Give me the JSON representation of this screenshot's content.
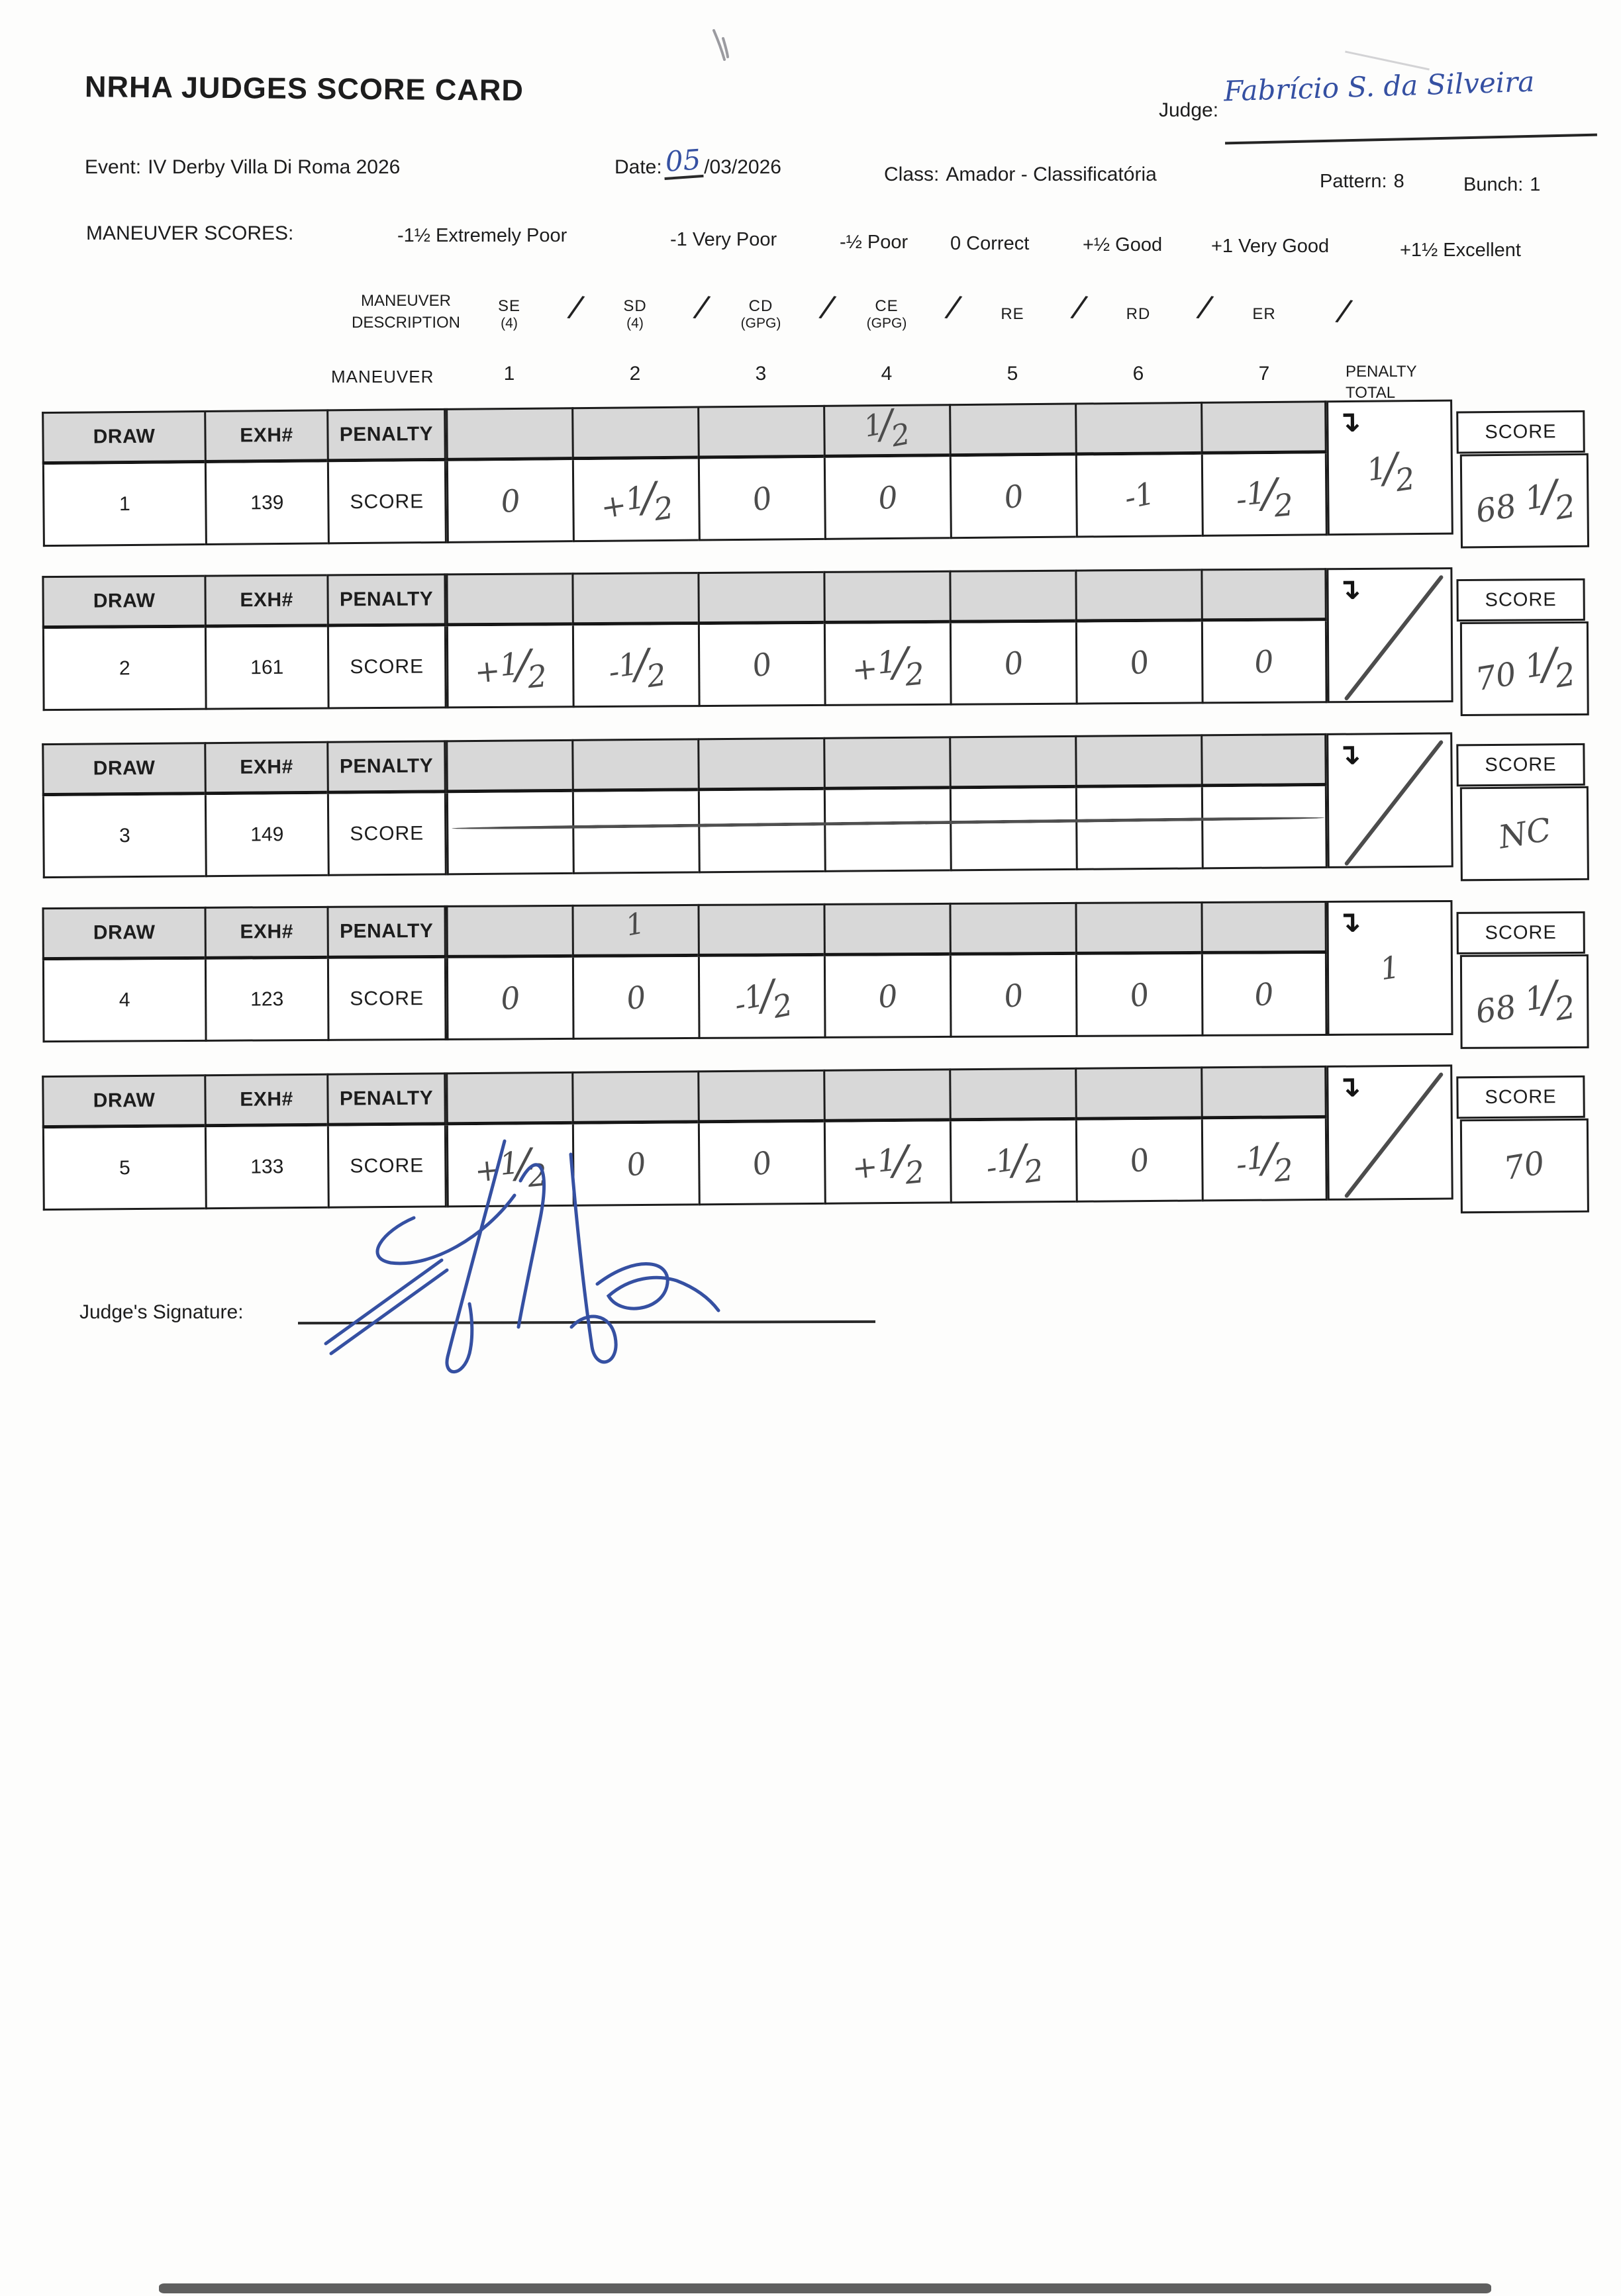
{
  "page": {
    "title": "NRHA JUDGES SCORE CARD",
    "judge_label": "Judge:",
    "judge_name": "Fabrício S. da Silveira",
    "event_label": "Event:",
    "event_value": "IV Derby Villa Di Roma 2026",
    "date_label": "Date:",
    "date_day": "05",
    "date_rest": "/03/2026",
    "class_label": "Class:",
    "class_value": "Amador - Classificatória",
    "pattern_label": "Pattern:",
    "pattern_value": "8",
    "bunch_label": "Bunch:",
    "bunch_value": "1"
  },
  "legend": {
    "label": "MANEUVER SCORES:",
    "items": [
      "-1½ Extremely Poor",
      "-1 Very Poor",
      "-½ Poor",
      "0 Correct",
      "+½ Good",
      "+1 Very Good",
      "+1½ Excellent"
    ]
  },
  "maneuver_header": {
    "description_label_line1": "MANEUVER",
    "description_label_line2": "DESCRIPTION",
    "separator": "/",
    "maneuvers": [
      {
        "abbr": "SE",
        "sub": "(4)"
      },
      {
        "abbr": "SD",
        "sub": "(4)"
      },
      {
        "abbr": "CD",
        "sub": "(GPG)"
      },
      {
        "abbr": "CE",
        "sub": "(GPG)"
      },
      {
        "abbr": "RE",
        "sub": ""
      },
      {
        "abbr": "RD",
        "sub": ""
      },
      {
        "abbr": "ER",
        "sub": ""
      }
    ],
    "maneuver_label": "MANEUVER",
    "numbers": [
      "1",
      "2",
      "3",
      "4",
      "5",
      "6",
      "7"
    ],
    "penalty_total_line1": "PENALTY",
    "penalty_total_line2": "TOTAL"
  },
  "table": {
    "col_draw": "DRAW",
    "col_exh": "EXH#",
    "col_penalty": "PENALTY",
    "score_row_label": "SCORE",
    "score_col_label": "SCORE"
  },
  "rows": [
    {
      "draw": "1",
      "exh": "139",
      "penalties": [
        "",
        "",
        "",
        "1/2",
        "",
        "",
        ""
      ],
      "scores": [
        "0",
        "+1/2",
        "0",
        "0",
        "0",
        "-1",
        "-1/2"
      ],
      "penalty_total": "1/2",
      "total_slash": false,
      "score": "68 1/2",
      "struck": false
    },
    {
      "draw": "2",
      "exh": "161",
      "penalties": [
        "",
        "",
        "",
        "",
        "",
        "",
        ""
      ],
      "scores": [
        "+1/2",
        "-1/2",
        "0",
        "+1/2",
        "0",
        "0",
        "0"
      ],
      "penalty_total": "",
      "total_slash": true,
      "score": "70 1/2",
      "struck": false
    },
    {
      "draw": "3",
      "exh": "149",
      "penalties": [
        "",
        "",
        "",
        "",
        "",
        "",
        ""
      ],
      "scores": [
        "",
        "",
        "",
        "",
        "",
        "",
        ""
      ],
      "penalty_total": "",
      "total_slash": true,
      "score": "NC",
      "struck": true
    },
    {
      "draw": "4",
      "exh": "123",
      "penalties": [
        "",
        "1",
        "",
        "",
        "",
        "",
        ""
      ],
      "scores": [
        "0",
        "0",
        "-1/2",
        "0",
        "0",
        "0",
        "0"
      ],
      "penalty_total": "1",
      "total_slash": false,
      "score": "68 1/2",
      "struck": false
    },
    {
      "draw": "5",
      "exh": "133",
      "penalties": [
        "",
        "",
        "",
        "",
        "",
        "",
        ""
      ],
      "scores": [
        "+1/2",
        "0",
        "0",
        "+1/2",
        "-1/2",
        "0",
        "-1/2"
      ],
      "penalty_total": "",
      "total_slash": true,
      "score": "70",
      "struck": false
    }
  ],
  "footer": {
    "signature_label": "Judge's Signature:"
  },
  "icons": {
    "penalty_total_arrow": "↴"
  },
  "colors": {
    "ink_pen": "#4c4c4c",
    "ink_blue": "#3550a2",
    "header_shade": "#d8d8d8"
  }
}
